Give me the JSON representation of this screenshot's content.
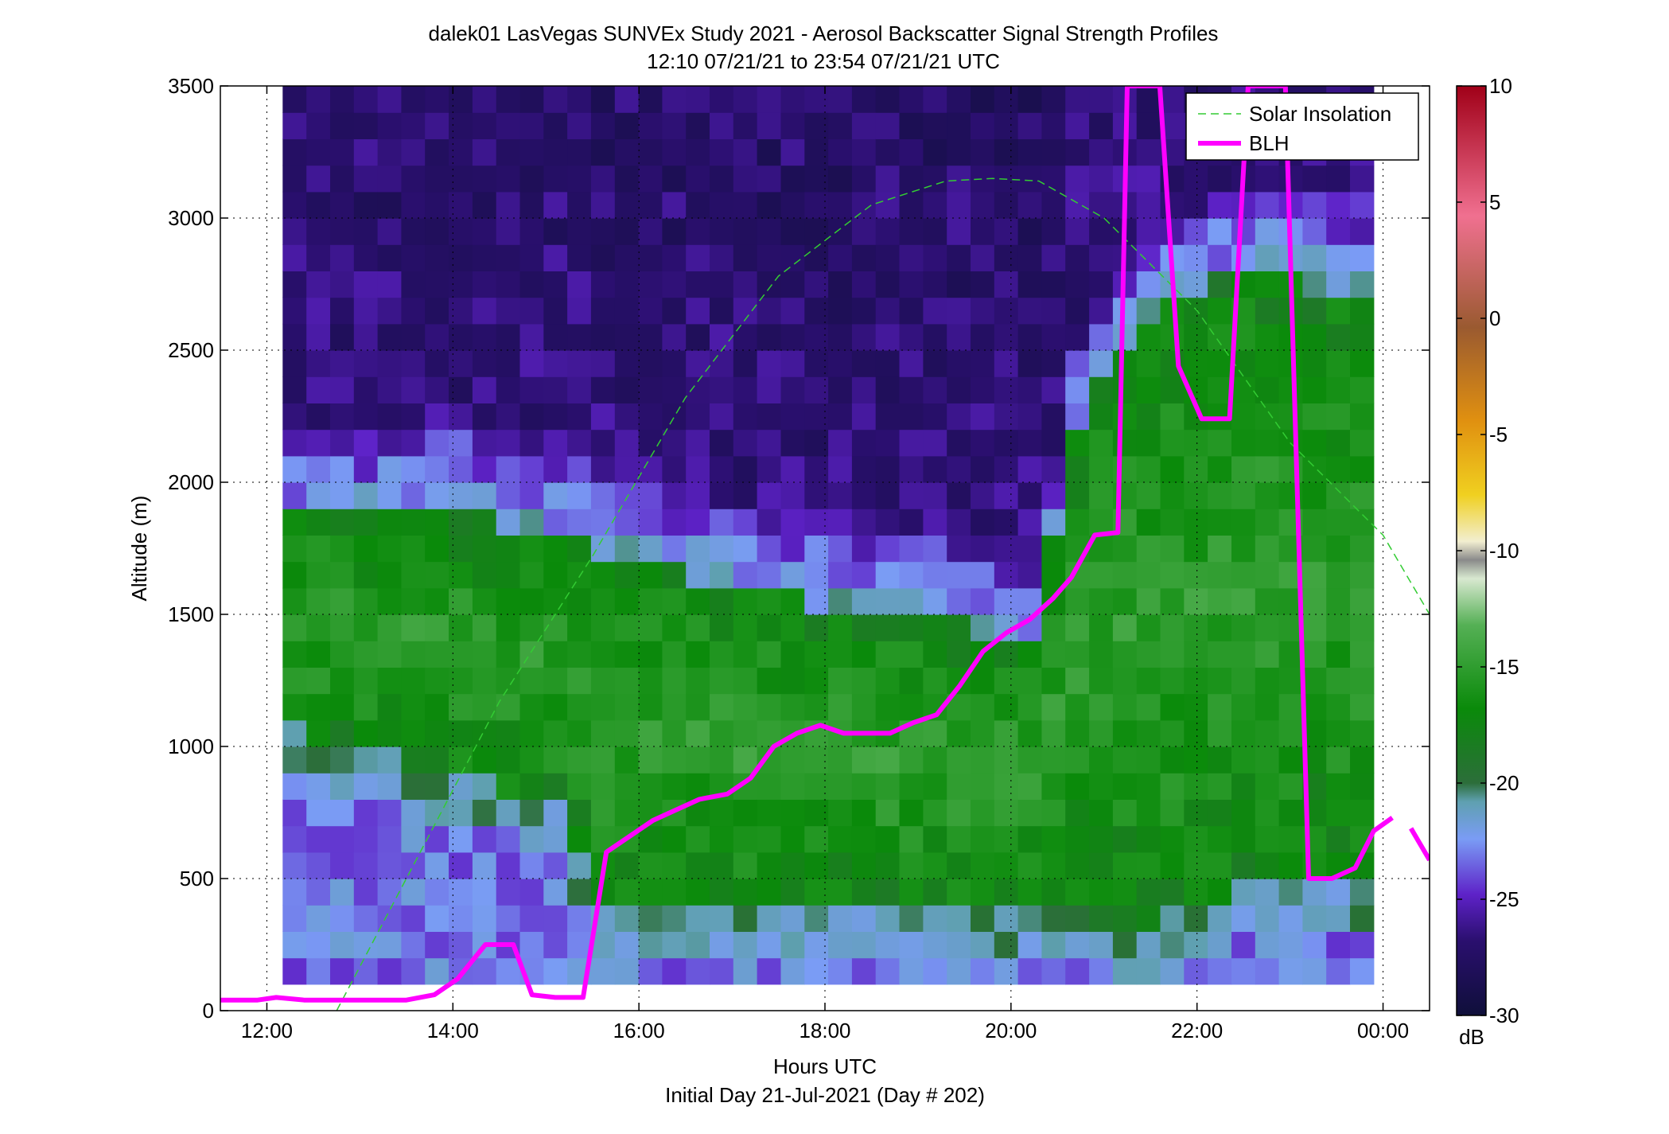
{
  "chart_data": {
    "type": "heatmap",
    "title": "dalek01 LasVegas SUNVEx Study 2021 - Aerosol Backscatter Signal Strength Profiles",
    "subtitle": "12:10 07/21/21 to 23:54 07/21/21  UTC",
    "xlabel": "Hours UTC",
    "xlabel2": "Initial Day 21-Jul-2021 (Day # 202)",
    "ylabel": "Altitude (m)",
    "xlim": [
      11.5,
      24.5
    ],
    "ylim": [
      0,
      3500
    ],
    "x_ticks": [
      12,
      14,
      16,
      18,
      20,
      22,
      24
    ],
    "x_tick_labels": [
      "12:00",
      "14:00",
      "16:00",
      "18:00",
      "20:00",
      "22:00",
      "00:00"
    ],
    "y_ticks": [
      0,
      500,
      1000,
      1500,
      2000,
      2500,
      3000,
      3500
    ],
    "y_tick_labels": [
      "0",
      "500",
      "1000",
      "1500",
      "2000",
      "2500",
      "3000",
      "3500"
    ],
    "grid": true,
    "legend_position": "top-right",
    "colorbar": {
      "unit_label": "dB",
      "range": [
        -30,
        10
      ],
      "ticks": [
        -30,
        -25,
        -20,
        -15,
        -10,
        -5,
        0,
        5,
        10
      ],
      "tick_labels": [
        "-30",
        "-25",
        "-20",
        "-15",
        "-10",
        "-5",
        "0",
        "5",
        "10"
      ]
    },
    "heatmap": {
      "x_range": [
        12.17,
        23.9
      ],
      "y_range": [
        100,
        3500
      ],
      "z_description_levels_dB": {
        "free_troposphere": -26,
        "entrainment_zone": -22,
        "residual_aerosol_layer": -18,
        "near_surface_haze": -23
      }
    },
    "series": [
      {
        "name": "Solar Insolation",
        "style": "dashed",
        "color": "#33cc33",
        "x": [
          12.75,
          13.5,
          14.5,
          15.5,
          16.5,
          17.5,
          18.5,
          19.3,
          19.8,
          20.3,
          21.0,
          22.0,
          23.0,
          24.0,
          24.5
        ],
        "y": [
          0,
          500,
          1170,
          1720,
          2320,
          2780,
          3050,
          3140,
          3150,
          3140,
          3000,
          2650,
          2150,
          1800,
          1500
        ]
      },
      {
        "name": "BLH",
        "style": "solid",
        "color": "#ff00ff",
        "x": [
          11.5,
          11.9,
          12.1,
          12.4,
          12.7,
          13.1,
          13.5,
          13.8,
          14.05,
          14.35,
          14.65,
          14.85,
          15.1,
          15.4,
          15.65,
          15.9,
          16.15,
          16.4,
          16.65,
          16.95,
          17.2,
          17.45,
          17.7,
          17.95,
          18.2,
          18.45,
          18.7,
          18.95,
          19.2,
          19.45,
          19.7,
          19.95,
          20.2,
          20.45,
          20.65,
          20.9,
          21.15,
          21.25,
          21.4,
          21.6,
          21.8,
          22.05,
          22.35,
          22.55,
          22.75,
          22.95,
          23.2,
          23.45,
          23.7,
          23.9,
          24.1
        ],
        "y": [
          40,
          40,
          50,
          40,
          40,
          40,
          40,
          60,
          120,
          250,
          250,
          60,
          50,
          50,
          600,
          660,
          720,
          760,
          800,
          820,
          880,
          1000,
          1050,
          1080,
          1050,
          1050,
          1050,
          1090,
          1120,
          1230,
          1360,
          1430,
          1480,
          1560,
          1640,
          1800,
          1810,
          3500,
          3500,
          3500,
          2440,
          2240,
          2240,
          3500,
          3500,
          3500,
          500,
          500,
          540,
          680,
          730
        ]
      }
    ]
  }
}
